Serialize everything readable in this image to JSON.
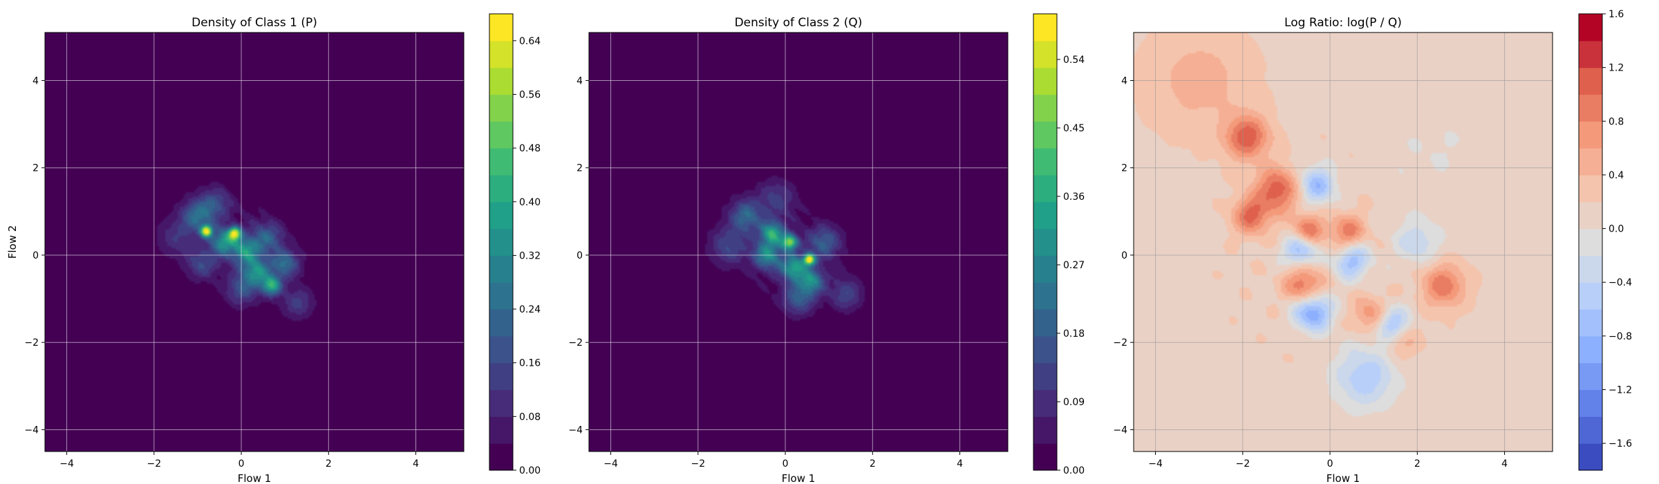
{
  "chart_data": [
    {
      "type": "heatmap",
      "title": "Density of Class 1 (P)",
      "xlabel": "Flow 1",
      "ylabel": "Flow 2",
      "xlim": [
        -4.5,
        5.1
      ],
      "ylim": [
        -4.5,
        5.1
      ],
      "xticks": [
        "−4",
        "−2",
        "0",
        "2",
        "4"
      ],
      "yticks": [
        "−4",
        "−2",
        "0",
        "2",
        "4"
      ],
      "grid": true,
      "colormap": "viridis",
      "colorbar": {
        "range": [
          0,
          0.68
        ],
        "ticks": [
          {
            "v": 0.0,
            "label": "0.00"
          },
          {
            "v": 0.08,
            "label": "0.08"
          },
          {
            "v": 0.16,
            "label": "0.16"
          },
          {
            "v": 0.24,
            "label": "0.24"
          },
          {
            "v": 0.32,
            "label": "0.32"
          },
          {
            "v": 0.4,
            "label": "0.40"
          },
          {
            "v": 0.48,
            "label": "0.48"
          },
          {
            "v": 0.56,
            "label": "0.56"
          },
          {
            "v": 0.64,
            "label": "0.64"
          }
        ]
      },
      "field": {
        "blobs": [
          {
            "x": -0.8,
            "y": 0.55,
            "a": 0.62,
            "s": 0.09
          },
          {
            "x": -0.15,
            "y": 0.5,
            "a": 0.55,
            "s": 0.1
          },
          {
            "x": -0.4,
            "y": 0.3,
            "a": 0.32,
            "s": 0.2
          },
          {
            "x": 0.1,
            "y": 0.1,
            "a": 0.3,
            "s": 0.22
          },
          {
            "x": 0.35,
            "y": -0.4,
            "a": 0.3,
            "s": 0.22
          },
          {
            "x": 0.7,
            "y": -0.7,
            "a": 0.38,
            "s": 0.15
          },
          {
            "x": 1.0,
            "y": -0.2,
            "a": 0.22,
            "s": 0.22
          },
          {
            "x": -1.0,
            "y": 0.9,
            "a": 0.22,
            "s": 0.25
          },
          {
            "x": -0.6,
            "y": 1.2,
            "a": 0.14,
            "s": 0.25
          },
          {
            "x": 0.6,
            "y": 0.4,
            "a": 0.18,
            "s": 0.25
          },
          {
            "x": -1.5,
            "y": 0.4,
            "a": 0.1,
            "s": 0.3
          },
          {
            "x": 0.0,
            "y": -0.8,
            "a": 0.15,
            "s": 0.25
          },
          {
            "x": 1.3,
            "y": -1.1,
            "a": 0.12,
            "s": 0.25
          },
          {
            "x": -0.9,
            "y": -0.2,
            "a": 0.14,
            "s": 0.25
          }
        ],
        "envelope": {
          "cx": 0.0,
          "cy": 0.2,
          "sx": 1.15,
          "sy": 0.75,
          "angle": -35,
          "amp": 0.05
        }
      }
    },
    {
      "type": "heatmap",
      "title": "Density of Class 2 (Q)",
      "xlabel": "Flow 1",
      "ylabel": "",
      "xlim": [
        -4.5,
        5.1
      ],
      "ylim": [
        -4.5,
        5.1
      ],
      "xticks": [
        "−4",
        "−2",
        "0",
        "2",
        "4"
      ],
      "yticks": [
        "−4",
        "−2",
        "0",
        "2",
        "4"
      ],
      "grid": true,
      "colormap": "viridis",
      "colorbar": {
        "range": [
          0,
          0.6
        ],
        "ticks": [
          {
            "v": 0.0,
            "label": "0.00"
          },
          {
            "v": 0.09,
            "label": "0.09"
          },
          {
            "v": 0.18,
            "label": "0.18"
          },
          {
            "v": 0.27,
            "label": "0.27"
          },
          {
            "v": 0.36,
            "label": "0.36"
          },
          {
            "v": 0.45,
            "label": "0.45"
          },
          {
            "v": 0.54,
            "label": "0.54"
          }
        ]
      },
      "field": {
        "blobs": [
          {
            "x": 0.55,
            "y": -0.1,
            "a": 0.55,
            "s": 0.09
          },
          {
            "x": 0.1,
            "y": 0.3,
            "a": 0.45,
            "s": 0.12
          },
          {
            "x": -0.3,
            "y": 0.5,
            "a": 0.32,
            "s": 0.18
          },
          {
            "x": 0.2,
            "y": -0.3,
            "a": 0.3,
            "s": 0.2
          },
          {
            "x": -0.4,
            "y": 0.0,
            "a": 0.25,
            "s": 0.22
          },
          {
            "x": 0.6,
            "y": -0.6,
            "a": 0.25,
            "s": 0.2
          },
          {
            "x": -0.9,
            "y": 0.9,
            "a": 0.18,
            "s": 0.25
          },
          {
            "x": 0.9,
            "y": 0.3,
            "a": 0.16,
            "s": 0.25
          },
          {
            "x": 0.3,
            "y": -1.0,
            "a": 0.16,
            "s": 0.25
          },
          {
            "x": -1.3,
            "y": 0.2,
            "a": 0.12,
            "s": 0.3
          },
          {
            "x": 1.4,
            "y": -0.9,
            "a": 0.12,
            "s": 0.25
          },
          {
            "x": -0.2,
            "y": 1.3,
            "a": 0.1,
            "s": 0.3
          }
        ],
        "envelope": {
          "cx": 0.0,
          "cy": 0.1,
          "sx": 1.15,
          "sy": 0.8,
          "angle": -35,
          "amp": 0.05
        }
      }
    },
    {
      "type": "heatmap",
      "title": "Log Ratio: log(P / Q)",
      "xlabel": "Flow 1",
      "ylabel": "",
      "xlim": [
        -4.5,
        5.1
      ],
      "ylim": [
        -4.5,
        5.1
      ],
      "xticks": [
        "−4",
        "−2",
        "0",
        "2",
        "4"
      ],
      "yticks": [
        "−4",
        "−2",
        "0",
        "2",
        "4"
      ],
      "grid": true,
      "colormap": "coolwarm",
      "colorbar": {
        "range": [
          -1.8,
          1.6
        ],
        "ticks": [
          {
            "v": -1.6,
            "label": "−1.6"
          },
          {
            "v": -1.2,
            "label": "−1.2"
          },
          {
            "v": -0.8,
            "label": "−0.8"
          },
          {
            "v": -0.4,
            "label": "−0.4"
          },
          {
            "v": 0.0,
            "label": "0.0"
          },
          {
            "v": 0.4,
            "label": "0.4"
          },
          {
            "v": 0.8,
            "label": "0.8"
          },
          {
            "v": 1.2,
            "label": "1.2"
          },
          {
            "v": 1.6,
            "label": "1.6"
          }
        ]
      },
      "field": {
        "base": 0.15,
        "blobs": [
          {
            "x": -1.9,
            "y": 2.7,
            "a": 1.0,
            "s": 0.35
          },
          {
            "x": -1.2,
            "y": 1.5,
            "a": 1.0,
            "s": 0.35
          },
          {
            "x": -1.8,
            "y": 0.9,
            "a": 0.9,
            "s": 0.3
          },
          {
            "x": -0.5,
            "y": 0.6,
            "a": 0.8,
            "s": 0.25
          },
          {
            "x": 0.4,
            "y": 0.5,
            "a": 0.8,
            "s": 0.3
          },
          {
            "x": -0.6,
            "y": -0.7,
            "a": 0.9,
            "s": 0.3
          },
          {
            "x": 1.0,
            "y": -1.4,
            "a": 0.8,
            "s": 0.3
          },
          {
            "x": 2.6,
            "y": -0.7,
            "a": 0.8,
            "s": 0.35
          },
          {
            "x": 1.6,
            "y": -1.9,
            "a": 0.6,
            "s": 0.3
          },
          {
            "x": -3.0,
            "y": 4.0,
            "a": 0.35,
            "s": 0.8
          },
          {
            "x": -0.3,
            "y": 1.6,
            "a": -0.9,
            "s": 0.3
          },
          {
            "x": -0.7,
            "y": 0.1,
            "a": -0.9,
            "s": 0.25
          },
          {
            "x": 0.5,
            "y": -0.1,
            "a": -0.9,
            "s": 0.3
          },
          {
            "x": 1.4,
            "y": -1.6,
            "a": -1.2,
            "s": 0.3
          },
          {
            "x": -0.4,
            "y": -1.3,
            "a": -1.2,
            "s": 0.3
          },
          {
            "x": 0.8,
            "y": -2.8,
            "a": -0.7,
            "s": 0.5
          },
          {
            "x": 2.0,
            "y": 0.3,
            "a": -0.5,
            "s": 0.35
          },
          {
            "x": 2.5,
            "y": 2.5,
            "a": -0.15,
            "s": 1.0
          }
        ]
      }
    }
  ]
}
